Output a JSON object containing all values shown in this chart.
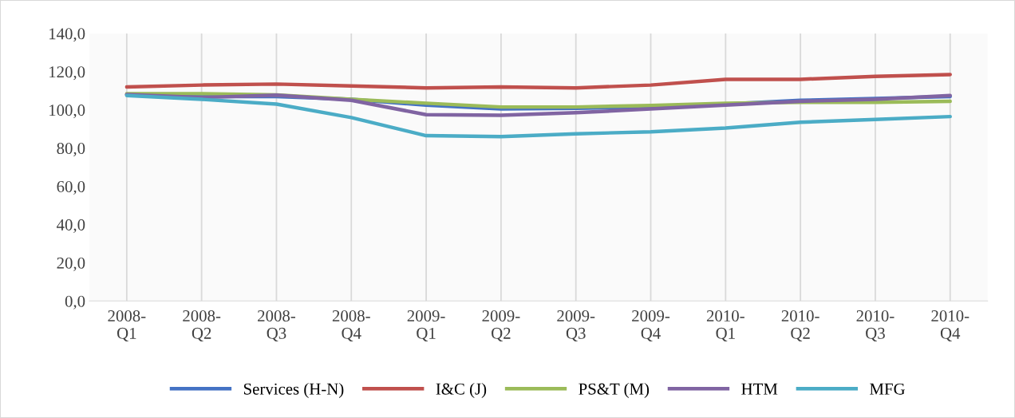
{
  "chart_data": {
    "type": "line",
    "categories": [
      "2008-Q1",
      "2008-Q2",
      "2008-Q3",
      "2008-Q4",
      "2009-Q1",
      "2009-Q2",
      "2009-Q3",
      "2009-Q4",
      "2010-Q1",
      "2010-Q2",
      "2010-Q3",
      "2010-Q4"
    ],
    "series": [
      {
        "name": "Services (H-N)",
        "color": "#4472c4",
        "values": [
          108,
          107,
          107,
          105.5,
          102.5,
          100.5,
          100.8,
          101.5,
          103,
          105,
          106,
          107
        ]
      },
      {
        "name": "I&C (J)",
        "color": "#c0504d",
        "values": [
          112,
          113,
          113.5,
          112.5,
          111.5,
          112,
          111.5,
          113,
          116,
          116,
          117.5,
          118.5
        ]
      },
      {
        "name": "PS&T (M)",
        "color": "#9bbb59",
        "values": [
          108.5,
          108.5,
          107.8,
          105.5,
          103.5,
          101.5,
          101.5,
          102.3,
          103.5,
          104,
          104,
          104.5
        ]
      },
      {
        "name": "HTM",
        "color": "#8064a2",
        "values": [
          108,
          106.5,
          107.7,
          105,
          97.5,
          97.2,
          98.5,
          100.5,
          102.5,
          104.5,
          105.5,
          107.5
        ]
      },
      {
        "name": "MFG",
        "color": "#4bacc6",
        "values": [
          107.5,
          105.5,
          103,
          96,
          86.5,
          86,
          87.5,
          88.5,
          90.5,
          93.5,
          95,
          96.5
        ]
      }
    ],
    "ylim": [
      0,
      140
    ],
    "yticks": [
      {
        "value": 0,
        "label": "0,0"
      },
      {
        "value": 20,
        "label": "20,0"
      },
      {
        "value": 40,
        "label": "40,0"
      },
      {
        "value": 60,
        "label": "60,0"
      },
      {
        "value": 80,
        "label": "80,0"
      },
      {
        "value": 100,
        "label": "100,0"
      },
      {
        "value": 120,
        "label": "120,0"
      },
      {
        "value": 140,
        "label": "140,0"
      }
    ],
    "grid": "x",
    "legend": "bottom",
    "marker": "none",
    "line_style": "solid"
  }
}
